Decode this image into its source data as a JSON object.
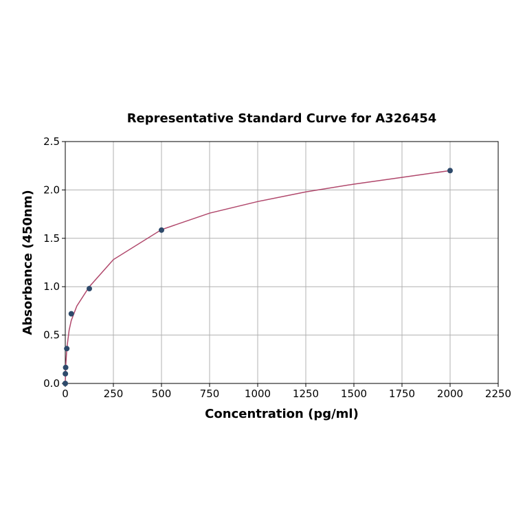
{
  "chart_data": {
    "type": "scatter",
    "title": "Representative Standard Curve for A326454",
    "x_label": "Concentration (pg/ml)",
    "y_label": "Absorbance (450nm)",
    "points": {
      "color": "#2e4a6b",
      "x": [
        0,
        0.5,
        2,
        7.8,
        31.25,
        125,
        500,
        2000
      ],
      "values": [
        0.0,
        0.1,
        0.165,
        0.36,
        0.72,
        0.98,
        1.585,
        2.2
      ]
    },
    "curve": {
      "color": "#b0476b",
      "x": [
        0,
        2,
        8,
        20,
        31,
        60,
        125,
        250,
        500,
        750,
        1000,
        1250,
        1500,
        1750,
        2000
      ],
      "values": [
        0.0,
        0.17,
        0.36,
        0.55,
        0.65,
        0.8,
        1.0,
        1.28,
        1.59,
        1.76,
        1.88,
        1.98,
        2.06,
        2.13,
        2.2
      ]
    },
    "xlim": [
      0,
      2250
    ],
    "xticks": [
      0,
      250,
      500,
      750,
      1000,
      1250,
      1500,
      1750,
      2000,
      2250
    ],
    "ylim": [
      0,
      2.5
    ],
    "yticks": [
      {
        "value": 0,
        "label": "0.0"
      },
      0.5,
      {
        "value": 1,
        "label": "1.0"
      },
      1.5,
      {
        "value": 2,
        "label": "2.0"
      },
      2.5
    ],
    "grid": true
  }
}
